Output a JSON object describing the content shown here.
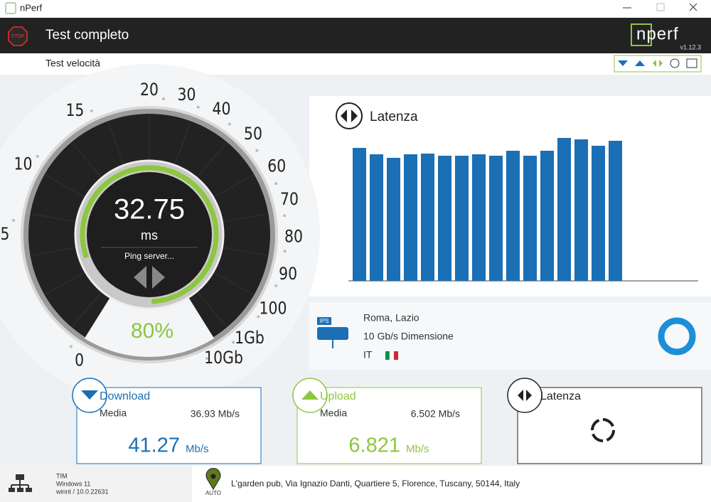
{
  "window": {
    "title": "nPerf"
  },
  "header": {
    "stop": "STOP",
    "title": "Test completo",
    "logo": "nperf",
    "version": "v1.12.3"
  },
  "subheader": {
    "title": "Test velocità"
  },
  "gauge": {
    "ticks": [
      0,
      5,
      10,
      15,
      20,
      30,
      40,
      50,
      60,
      70,
      80,
      90,
      100,
      "1Gb",
      "10Gb"
    ],
    "value": 32.75,
    "unit": "ms",
    "status": "Ping server...",
    "progress": {
      "value": 80,
      "label": "80%"
    }
  },
  "latency_chart": {
    "title": "Latenza",
    "values": [
      187,
      178,
      173,
      178,
      179,
      176,
      176,
      178,
      176,
      183,
      176,
      183,
      201,
      199,
      190,
      197
    ]
  },
  "server": {
    "icon": "IPS",
    "location": "Roma, Lazio",
    "capacity": "10 Gb/s Dimensione",
    "country": "IT"
  },
  "cards": [
    {
      "title": "Download",
      "average_label": "Media",
      "average": "36.93 Mb/s",
      "value": 41.27,
      "unit": "Mb/s"
    },
    {
      "title": "Upload",
      "average_label": "Media",
      "average": "6.502 Mb/s",
      "value": 6.821,
      "unit": "Mb/s"
    },
    {
      "title": "Latenza"
    }
  ],
  "footer": {
    "operator": "TIM",
    "os": "Windows 11",
    "host": "winnt / 10.0.22631",
    "mode": "AUTO",
    "address": "L'garden pub, Via Ignazio Danti, Quartiere 5, Florence, Tuscany, 50144, Italy"
  }
}
